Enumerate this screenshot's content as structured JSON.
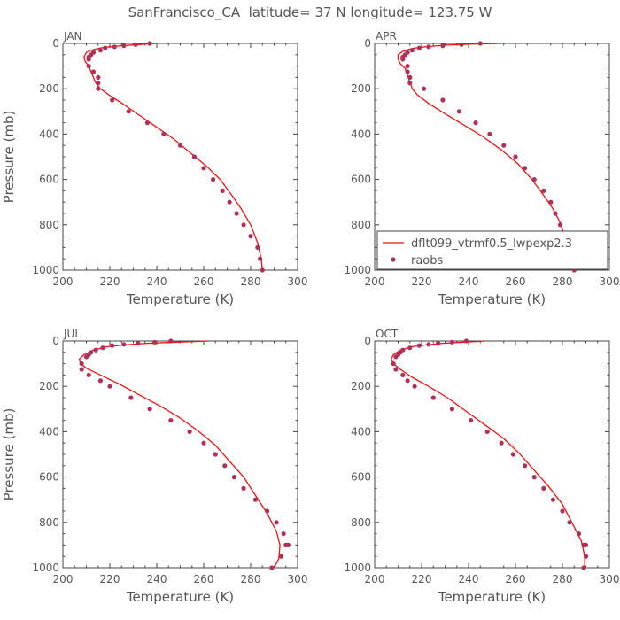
{
  "page_title": "SanFrancisco_CA  latitude= 37 N longitude= 123.75 W",
  "legend": {
    "model_label": "dflt099_vtrmf0.5_lwpexp2.3",
    "obs_label": "raobs"
  },
  "colors": {
    "model": "#ee1111",
    "obs": "#b0305a",
    "axis": "#444444",
    "text": "#555555"
  },
  "chart_data": [
    {
      "type": "line",
      "panel": "JAN",
      "xlabel": "Temperature (K)",
      "ylabel": "Pressure (mb)",
      "xlim": [
        200,
        300
      ],
      "ylim": [
        1000,
        0
      ],
      "xticks": [
        200,
        220,
        240,
        260,
        280,
        300
      ],
      "yticks": [
        0,
        200,
        400,
        600,
        800,
        1000
      ],
      "grid": false,
      "series": [
        {
          "name": "dflt099_vtrmf0.5_lwpexp2.3",
          "kind": "line",
          "x": [
            240,
            232,
            225,
            220,
            216,
            212,
            210,
            209,
            209.5,
            211,
            212,
            213,
            214,
            216,
            220,
            226,
            233,
            240,
            247,
            254,
            261,
            267,
            272,
            276,
            280,
            283,
            284.5,
            285
          ],
          "y": [
            0,
            5,
            10,
            15,
            20,
            30,
            40,
            60,
            80,
            100,
            125,
            150,
            175,
            200,
            230,
            270,
            320,
            370,
            420,
            480,
            540,
            600,
            670,
            730,
            800,
            880,
            950,
            1000
          ]
        },
        {
          "name": "raobs",
          "kind": "scatter",
          "x": [
            237,
            231,
            226,
            222,
            218,
            216,
            213,
            212,
            211,
            211,
            211,
            213,
            215,
            215,
            215,
            221,
            228,
            236,
            243,
            250,
            256,
            260,
            264,
            268,
            271,
            274,
            277,
            280,
            283,
            284,
            285
          ],
          "y": [
            0,
            5,
            10,
            15,
            20,
            30,
            40,
            50,
            60,
            70,
            100,
            125,
            150,
            175,
            200,
            250,
            300,
            350,
            400,
            450,
            500,
            550,
            600,
            650,
            700,
            750,
            800,
            850,
            900,
            950,
            1000
          ]
        }
      ]
    },
    {
      "type": "line",
      "panel": "APR",
      "xlabel": "Temperature (K)",
      "ylabel": "",
      "xlim": [
        200,
        300
      ],
      "ylim": [
        1000,
        0
      ],
      "xticks": [
        200,
        220,
        240,
        260,
        280,
        300
      ],
      "yticks": [
        0,
        200,
        400,
        600,
        800,
        1000
      ],
      "grid": false,
      "legend_position": "lower-right",
      "series": [
        {
          "name": "dflt099_vtrmf0.5_lwpexp2.3",
          "kind": "line",
          "x": [
            254,
            240,
            230,
            222,
            216,
            212,
            210,
            210,
            211,
            213,
            214,
            215,
            216,
            218,
            223,
            230,
            238,
            246,
            254,
            261,
            267,
            272,
            276,
            279,
            281,
            283,
            284,
            284.5
          ],
          "y": [
            0,
            3,
            8,
            14,
            22,
            35,
            50,
            70,
            90,
            110,
            140,
            170,
            200,
            225,
            265,
            310,
            360,
            410,
            470,
            530,
            600,
            670,
            730,
            790,
            850,
            910,
            960,
            1000
          ]
        },
        {
          "name": "raobs",
          "kind": "scatter",
          "x": [
            245,
            237,
            229,
            223,
            219,
            216,
            214,
            213,
            212,
            212,
            214,
            214,
            215,
            215,
            221,
            229,
            236,
            243,
            249,
            255,
            260,
            264,
            268,
            272,
            275,
            277,
            279,
            282,
            284,
            285,
            285
          ],
          "y": [
            0,
            5,
            10,
            15,
            20,
            30,
            40,
            50,
            60,
            70,
            100,
            125,
            150,
            175,
            200,
            250,
            300,
            350,
            400,
            450,
            500,
            550,
            600,
            650,
            700,
            750,
            800,
            850,
            900,
            950,
            1000
          ]
        }
      ]
    },
    {
      "type": "line",
      "panel": "JUL",
      "xlabel": "Temperature (K)",
      "ylabel": "Pressure (mb)",
      "xlim": [
        200,
        300
      ],
      "ylim": [
        1000,
        0
      ],
      "xticks": [
        200,
        220,
        240,
        260,
        280,
        300
      ],
      "yticks": [
        0,
        200,
        400,
        600,
        800,
        1000
      ],
      "grid": false,
      "series": [
        {
          "name": "dflt099_vtrmf0.5_lwpexp2.3",
          "kind": "line",
          "x": [
            262,
            248,
            236,
            226,
            219,
            213,
            209,
            207,
            207.5,
            210,
            216,
            224,
            233,
            242,
            250,
            258,
            265,
            271,
            277,
            282,
            287,
            291,
            292.5,
            292,
            290
          ],
          "y": [
            0,
            5,
            10,
            17,
            25,
            40,
            60,
            80,
            100,
            120,
            150,
            190,
            240,
            290,
            340,
            400,
            460,
            530,
            600,
            680,
            760,
            840,
            900,
            960,
            1000
          ]
        },
        {
          "name": "raobs",
          "kind": "scatter",
          "x": [
            246,
            239,
            232,
            226,
            221,
            217,
            214,
            212,
            211,
            210,
            208,
            208,
            211,
            216,
            220,
            229,
            237,
            246,
            254,
            260,
            265,
            269,
            273,
            277,
            282,
            287,
            291,
            294,
            295,
            296,
            293,
            289
          ],
          "y": [
            0,
            5,
            10,
            15,
            20,
            30,
            40,
            50,
            60,
            70,
            100,
            125,
            150,
            175,
            200,
            250,
            300,
            350,
            400,
            450,
            500,
            550,
            600,
            650,
            700,
            750,
            800,
            850,
            900,
            900,
            950,
            1000
          ]
        }
      ]
    },
    {
      "type": "line",
      "panel": "OCT",
      "xlabel": "Temperature (K)",
      "ylabel": "",
      "xlim": [
        200,
        300
      ],
      "ylim": [
        1000,
        0
      ],
      "xticks": [
        200,
        220,
        240,
        260,
        280,
        300
      ],
      "yticks": [
        0,
        200,
        400,
        600,
        800,
        1000
      ],
      "grid": false,
      "series": [
        {
          "name": "dflt099_vtrmf0.5_lwpexp2.3",
          "kind": "line",
          "x": [
            247,
            238,
            229,
            222,
            216,
            211,
            208,
            207,
            208,
            211,
            216,
            223,
            231,
            239,
            247,
            255,
            262,
            268,
            274,
            280,
            284,
            288,
            289.5,
            289.5
          ],
          "y": [
            0,
            5,
            10,
            17,
            25,
            40,
            60,
            80,
            100,
            125,
            160,
            200,
            250,
            310,
            370,
            430,
            500,
            570,
            640,
            720,
            800,
            880,
            950,
            1000
          ]
        },
        {
          "name": "raobs",
          "kind": "scatter",
          "x": [
            239,
            233,
            227,
            223,
            219,
            215,
            212,
            211,
            210,
            209,
            208,
            209,
            212,
            214,
            217,
            225,
            233,
            241,
            248,
            254,
            259,
            264,
            268,
            272,
            276,
            280,
            283,
            287,
            289,
            290,
            290,
            290,
            289
          ],
          "y": [
            0,
            5,
            10,
            15,
            20,
            30,
            40,
            50,
            60,
            70,
            100,
            125,
            150,
            175,
            200,
            250,
            300,
            350,
            400,
            450,
            500,
            550,
            600,
            650,
            700,
            750,
            800,
            850,
            900,
            900,
            950,
            950,
            1000
          ]
        }
      ]
    }
  ]
}
